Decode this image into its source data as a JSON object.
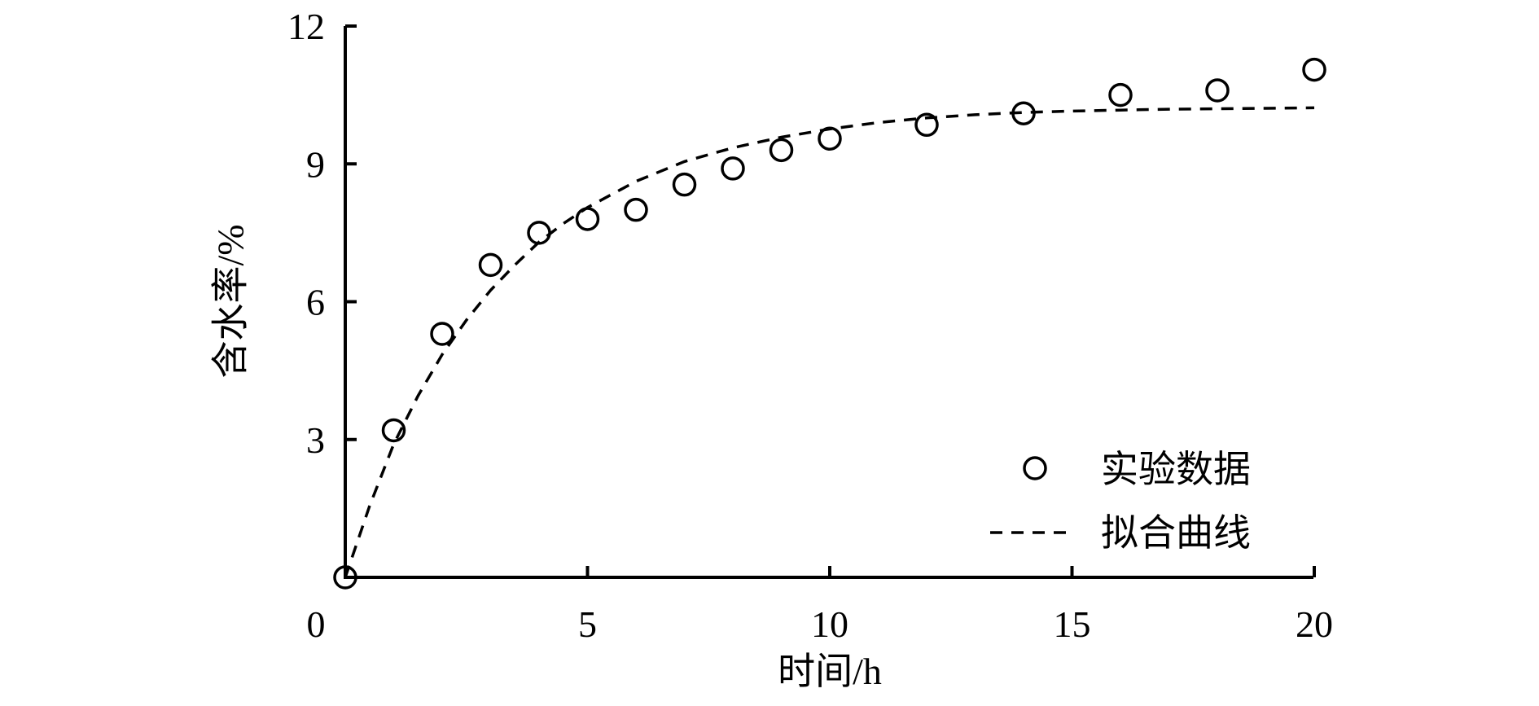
{
  "chart_data": {
    "type": "scatter",
    "xlabel": "时间/h",
    "ylabel": "含水率/%",
    "xlim": [
      0,
      20
    ],
    "ylim": [
      0,
      12
    ],
    "x_ticks": [
      "0",
      "5",
      "10",
      "15",
      "20"
    ],
    "y_ticks": [
      "3",
      "6",
      "9",
      "12"
    ],
    "grid": false,
    "legend_position": "bottom-right",
    "series": [
      {
        "name": "实验数据",
        "kind": "markers",
        "marker": "open-circle",
        "x": [
          0,
          1,
          2,
          3,
          4,
          5,
          6,
          7,
          8,
          9,
          10,
          12,
          14,
          16,
          18,
          20
        ],
        "y": [
          0,
          3.2,
          5.3,
          6.8,
          7.5,
          7.8,
          8.0,
          8.55,
          8.9,
          9.3,
          9.55,
          9.85,
          10.1,
          10.5,
          10.6,
          11.05
        ]
      },
      {
        "name": "拟合曲线",
        "kind": "line",
        "style": "dashed",
        "x": [
          0,
          0.5,
          1,
          1.5,
          2,
          2.5,
          3,
          3.5,
          4,
          4.5,
          5,
          6,
          7,
          8,
          9,
          10,
          11,
          12,
          13,
          14,
          15,
          16,
          17,
          18,
          19,
          20
        ],
        "y": [
          0,
          1.55,
          2.9,
          3.95,
          4.85,
          5.6,
          6.25,
          6.8,
          7.3,
          7.7,
          8.05,
          8.62,
          9.05,
          9.35,
          9.58,
          9.76,
          9.9,
          10.0,
          10.07,
          10.12,
          10.15,
          10.17,
          10.19,
          10.2,
          10.21,
          10.22
        ]
      }
    ]
  }
}
